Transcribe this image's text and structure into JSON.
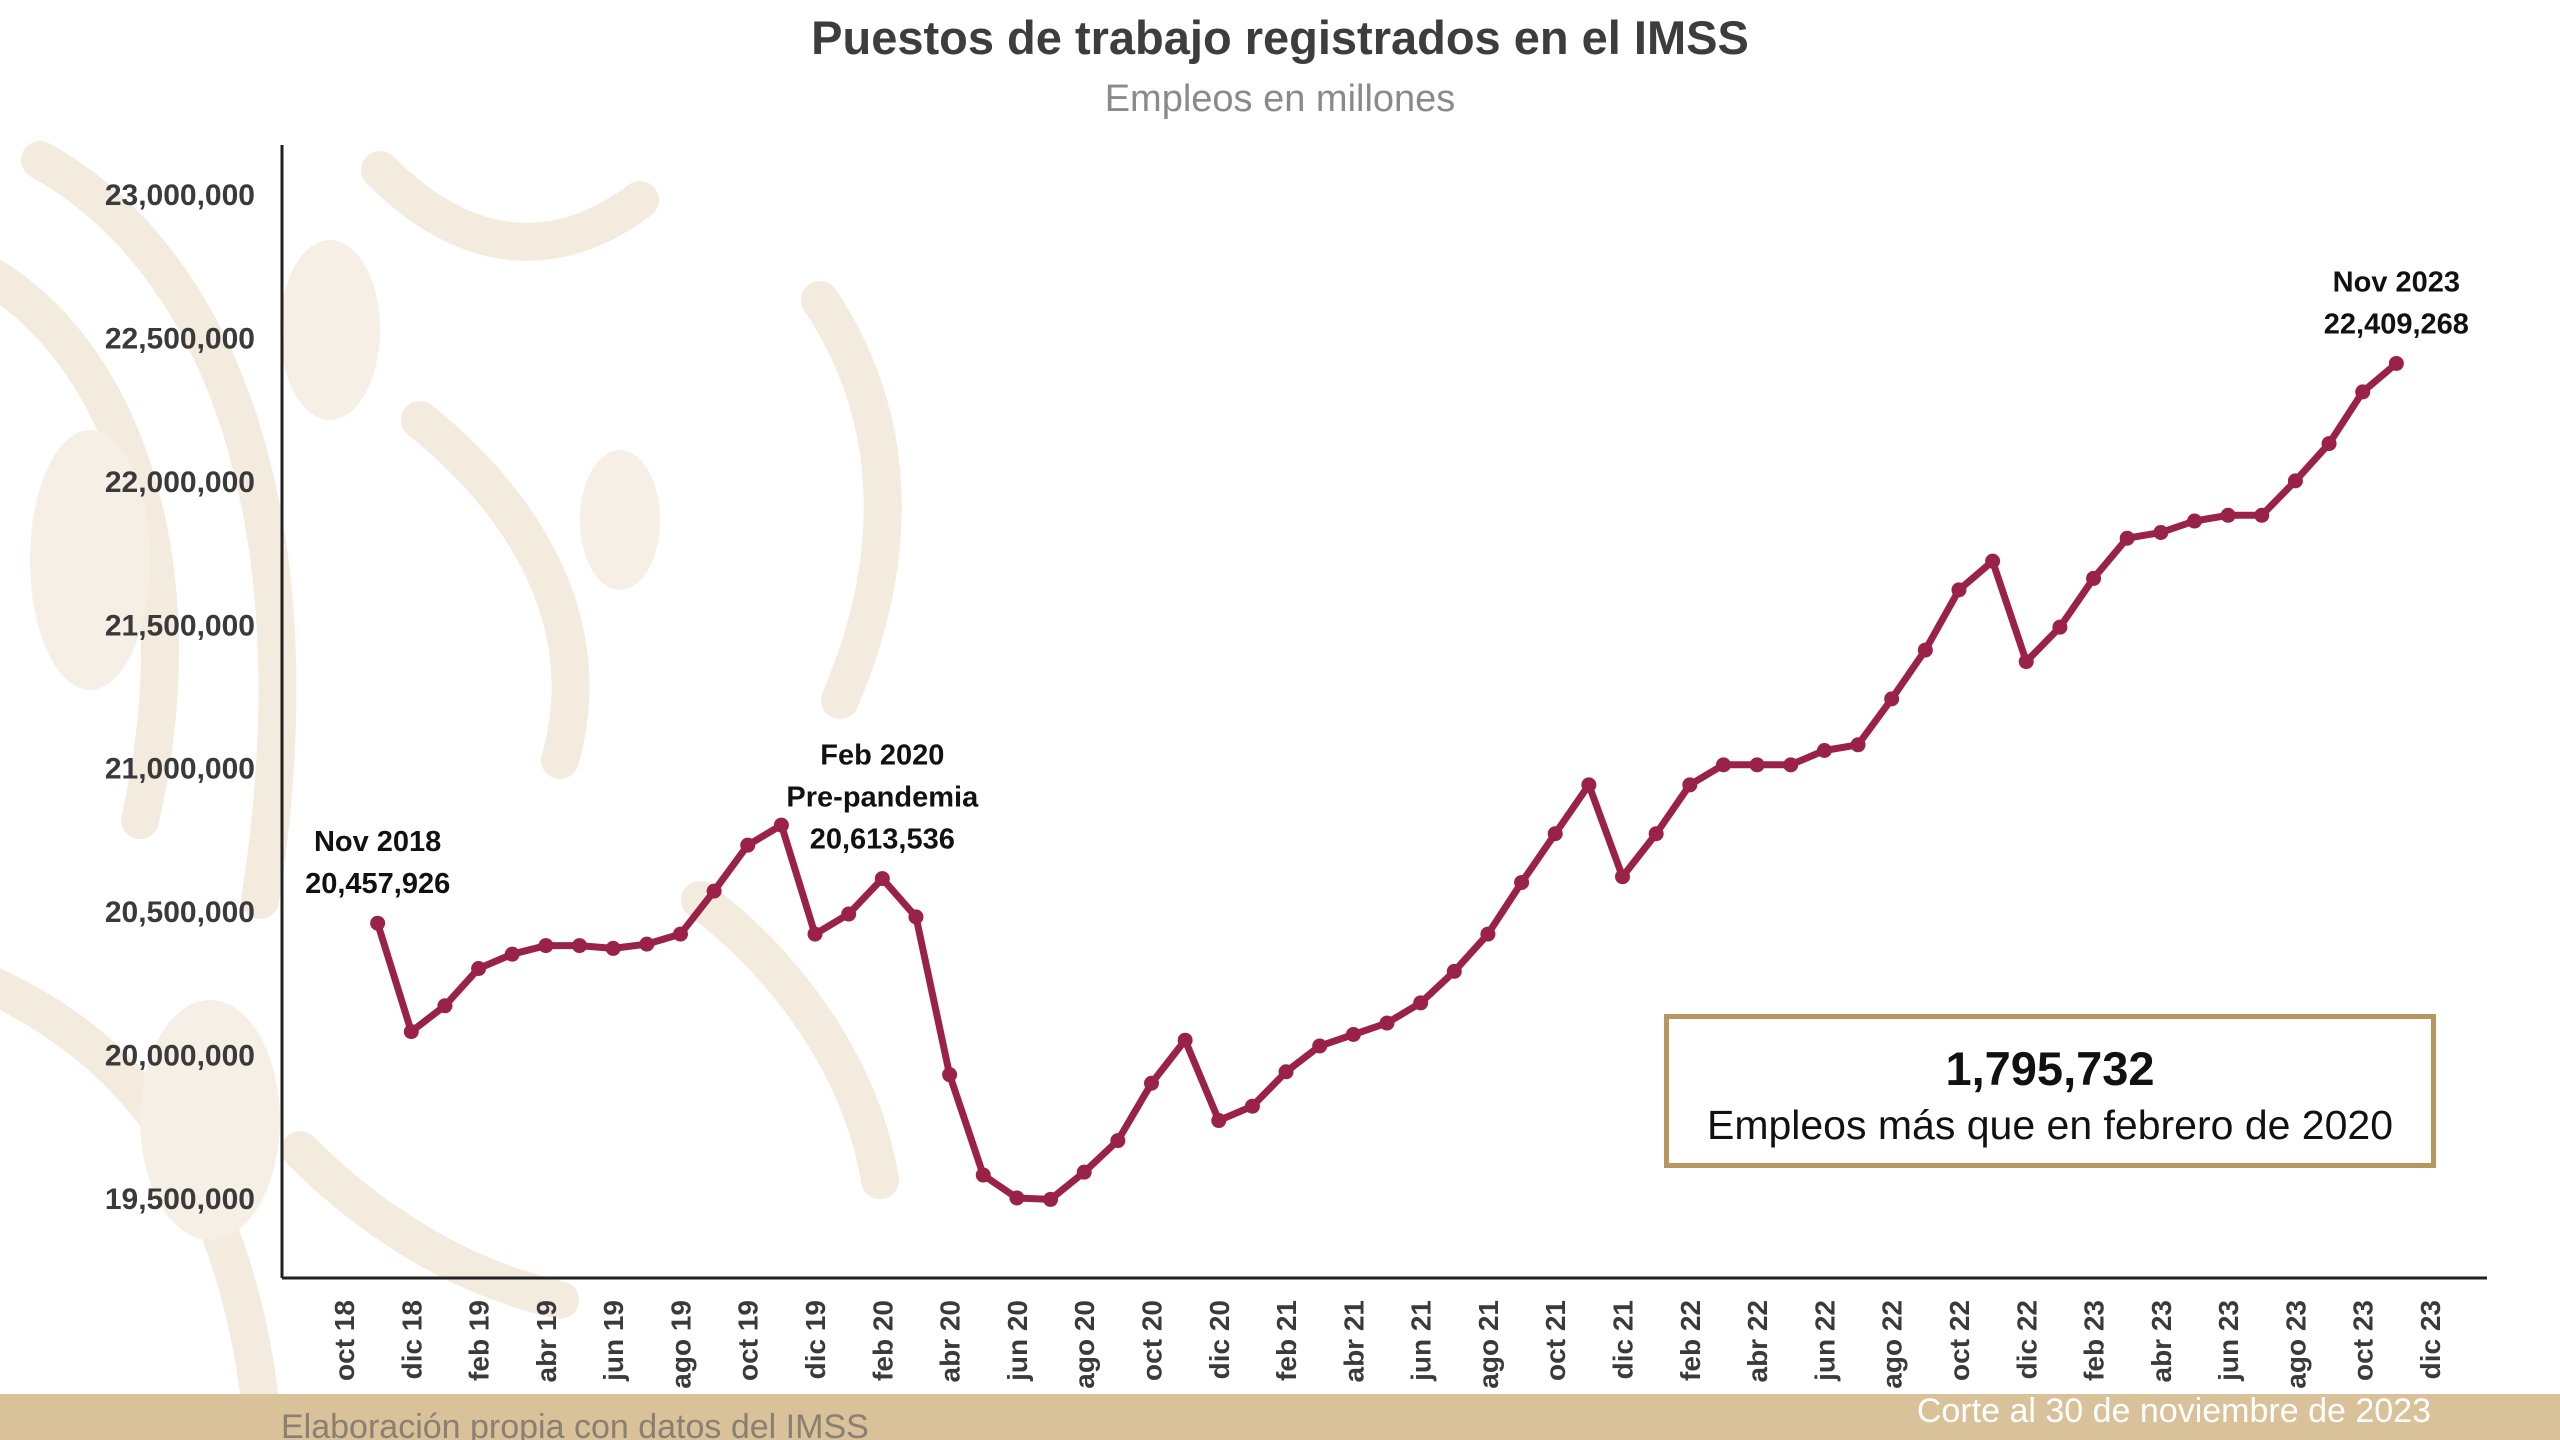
{
  "page": {
    "title": "Puestos de trabajo registrados en el IMSS",
    "subtitle": "Empleos en millones",
    "highlight": {
      "value": "1,795,732",
      "text": "Empleos más que en febrero de 2020"
    },
    "footer": {
      "source": "Elaboración propia con datos del IMSS",
      "cutoff": "Corte al 30 de noviembre de 2023"
    }
  },
  "colors": {
    "line": "#9b2247",
    "axis": "#222222",
    "tick_text": "#3a3a3a",
    "box_border": "#b8965f",
    "footer_bar": "#d9c199",
    "pattern": "#f3e9dc"
  },
  "chart_data": {
    "type": "line",
    "title": "Puestos de trabajo registrados en el IMSS",
    "subtitle": "Empleos en millones",
    "ylim": [
      19200000,
      23200000
    ],
    "y_ticks": [
      19500000,
      20000000,
      20500000,
      21000000,
      21500000,
      22000000,
      22500000,
      23000000
    ],
    "y_tick_labels": [
      "19,500,000",
      "20,000,000",
      "20,500,000",
      "21,000,000",
      "21,500,000",
      "22,000,000",
      "22,500,000",
      "23,000,000"
    ],
    "x_tick_labels": [
      "oct 18",
      "dic 18",
      "feb 19",
      "abr 19",
      "jun 19",
      "ago 19",
      "oct 19",
      "dic 19",
      "feb 20",
      "abr 20",
      "jun 20",
      "ago 20",
      "oct 20",
      "dic 20",
      "feb 21",
      "abr 21",
      "jun 21",
      "ago 21",
      "oct 21",
      "dic 21",
      "feb 22",
      "abr 22",
      "jun 22",
      "ago 22",
      "oct 22",
      "dic 22",
      "feb 23",
      "abr 23",
      "jun 23",
      "ago 23",
      "oct 23",
      "dic 23"
    ],
    "x_tick_months": [
      "2018-10",
      "2018-12",
      "2019-02",
      "2019-04",
      "2019-06",
      "2019-08",
      "2019-10",
      "2019-12",
      "2020-02",
      "2020-04",
      "2020-06",
      "2020-08",
      "2020-10",
      "2020-12",
      "2021-02",
      "2021-04",
      "2021-06",
      "2021-08",
      "2021-10",
      "2021-12",
      "2022-02",
      "2022-04",
      "2022-06",
      "2022-08",
      "2022-10",
      "2022-12",
      "2023-02",
      "2023-04",
      "2023-06",
      "2023-08",
      "2023-10",
      "2023-12"
    ],
    "x_range": [
      "2018-10",
      "2023-12"
    ],
    "grid": false,
    "series": [
      {
        "x": [
          "2018-11",
          "2018-12",
          "2019-01",
          "2019-02",
          "2019-03",
          "2019-04",
          "2019-05",
          "2019-06",
          "2019-07",
          "2019-08",
          "2019-09",
          "2019-10",
          "2019-11",
          "2019-12",
          "2020-01",
          "2020-02",
          "2020-03",
          "2020-04",
          "2020-05",
          "2020-06",
          "2020-07",
          "2020-08",
          "2020-09",
          "2020-10",
          "2020-11",
          "2020-12",
          "2021-01",
          "2021-02",
          "2021-03",
          "2021-04",
          "2021-05",
          "2021-06",
          "2021-07",
          "2021-08",
          "2021-09",
          "2021-10",
          "2021-11",
          "2021-12",
          "2022-01",
          "2022-02",
          "2022-03",
          "2022-04",
          "2022-05",
          "2022-06",
          "2022-07",
          "2022-08",
          "2022-09",
          "2022-10",
          "2022-11",
          "2022-12",
          "2023-01",
          "2023-02",
          "2023-03",
          "2023-04",
          "2023-05",
          "2023-06",
          "2023-07",
          "2023-08",
          "2023-09",
          "2023-10",
          "2023-11"
        ],
        "values": [
          20457926,
          20080000,
          20170000,
          20300000,
          20350000,
          20380000,
          20380000,
          20370000,
          20385000,
          20420000,
          20570000,
          20730000,
          20800000,
          20420000,
          20490000,
          20613536,
          20480000,
          19930000,
          19580000,
          19500000,
          19495000,
          19590000,
          19700000,
          19900000,
          20050000,
          19770000,
          19820000,
          19940000,
          20030000,
          20070000,
          20110000,
          20180000,
          20290000,
          20420000,
          20600000,
          20770000,
          20940000,
          20620000,
          20770000,
          20940000,
          21010000,
          21010000,
          21010000,
          21060000,
          21080000,
          21240000,
          21410000,
          21620000,
          21720000,
          21370000,
          21490000,
          21660000,
          21800000,
          21820000,
          21860000,
          21880000,
          21880000,
          22000000,
          22130000,
          22310000,
          22409268
        ]
      }
    ],
    "annotations": [
      {
        "month": "2018-11",
        "lines": [
          "Nov 2018",
          "20,457,926"
        ]
      },
      {
        "month": "2020-02",
        "lines": [
          "Feb 2020",
          "Pre-pandemia",
          "20,613,536"
        ]
      },
      {
        "month": "2023-11",
        "lines": [
          "Nov 2023",
          "22,409,268"
        ]
      }
    ]
  }
}
